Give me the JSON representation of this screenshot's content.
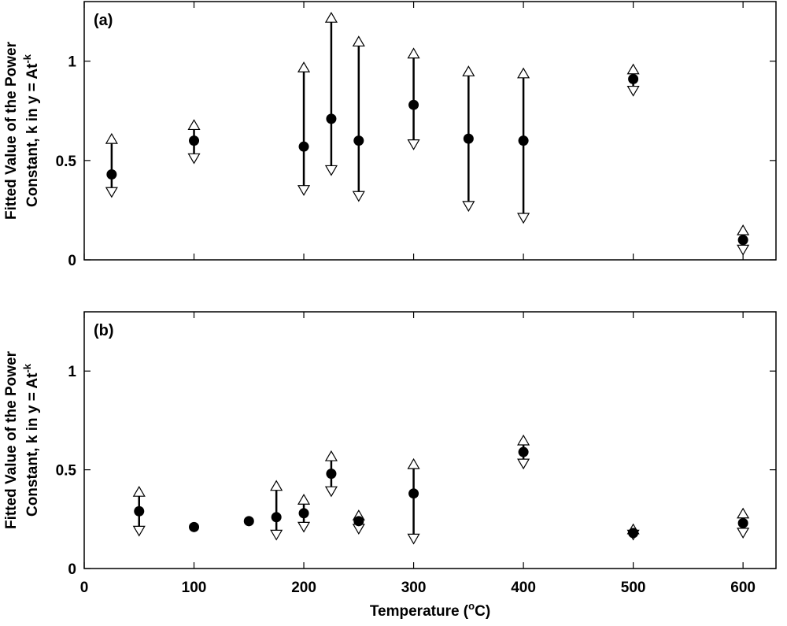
{
  "chart_data": [
    {
      "type": "scatter",
      "panel_label": "(a)",
      "ylabel_line1": "Fitted Value of the Power",
      "ylabel_line2": "Constant, k in y = At",
      "ylabel_superscript": "-k",
      "xlabel": "",
      "xlim": [
        0,
        630
      ],
      "ylim": [
        0,
        1.3
      ],
      "x_ticks": [
        0,
        100,
        200,
        300,
        400,
        500,
        600
      ],
      "y_ticks": [
        0,
        0.5,
        1
      ],
      "y_tick_labels": [
        "0",
        "0.5",
        "1"
      ],
      "show_x_tick_labels": false,
      "points": [
        {
          "x": 25,
          "y": 0.43,
          "upper": 0.61,
          "lower": 0.34
        },
        {
          "x": 100,
          "y": 0.6,
          "upper": 0.68,
          "lower": 0.51
        },
        {
          "x": 200,
          "y": 0.57,
          "upper": 0.97,
          "lower": 0.35
        },
        {
          "x": 225,
          "y": 0.71,
          "upper": 1.22,
          "lower": 0.45
        },
        {
          "x": 250,
          "y": 0.6,
          "upper": 1.1,
          "lower": 0.32
        },
        {
          "x": 300,
          "y": 0.78,
          "upper": 1.04,
          "lower": 0.58
        },
        {
          "x": 350,
          "y": 0.61,
          "upper": 0.95,
          "lower": 0.27
        },
        {
          "x": 400,
          "y": 0.6,
          "upper": 0.94,
          "lower": 0.21
        },
        {
          "x": 500,
          "y": 0.91,
          "upper": 0.96,
          "lower": 0.85
        },
        {
          "x": 600,
          "y": 0.1,
          "upper": 0.15,
          "lower": 0.05
        }
      ]
    },
    {
      "type": "scatter",
      "panel_label": "(b)",
      "ylabel_line1": "Fitted Value of the Power",
      "ylabel_line2": "Constant, k in y = At",
      "ylabel_superscript": "-k",
      "xlabel": "Temperature (",
      "xlabel_superscript": "o",
      "xlabel_suffix": "C)",
      "xlim": [
        0,
        630
      ],
      "ylim": [
        0,
        1.3
      ],
      "x_ticks": [
        0,
        100,
        200,
        300,
        400,
        500,
        600
      ],
      "x_tick_labels": [
        "0",
        "100",
        "200",
        "300",
        "400",
        "500",
        "600"
      ],
      "y_ticks": [
        0,
        0.5,
        1
      ],
      "y_tick_labels": [
        "0",
        "0.5",
        "1"
      ],
      "show_x_tick_labels": true,
      "points": [
        {
          "x": 50,
          "y": 0.29,
          "upper": 0.39,
          "lower": 0.19
        },
        {
          "x": 100,
          "y": 0.21,
          "upper": null,
          "lower": null
        },
        {
          "x": 150,
          "y": 0.24,
          "upper": null,
          "lower": null
        },
        {
          "x": 175,
          "y": 0.26,
          "upper": 0.42,
          "lower": 0.17
        },
        {
          "x": 200,
          "y": 0.28,
          "upper": 0.35,
          "lower": 0.21
        },
        {
          "x": 225,
          "y": 0.48,
          "upper": 0.57,
          "lower": 0.39
        },
        {
          "x": 250,
          "y": 0.24,
          "upper": 0.27,
          "lower": 0.2
        },
        {
          "x": 300,
          "y": 0.38,
          "upper": 0.53,
          "lower": 0.15
        },
        {
          "x": 400,
          "y": 0.59,
          "upper": 0.65,
          "lower": 0.53
        },
        {
          "x": 500,
          "y": 0.18,
          "upper": 0.2,
          "lower": 0.17
        },
        {
          "x": 600,
          "y": 0.23,
          "upper": 0.28,
          "lower": 0.18
        }
      ]
    }
  ]
}
